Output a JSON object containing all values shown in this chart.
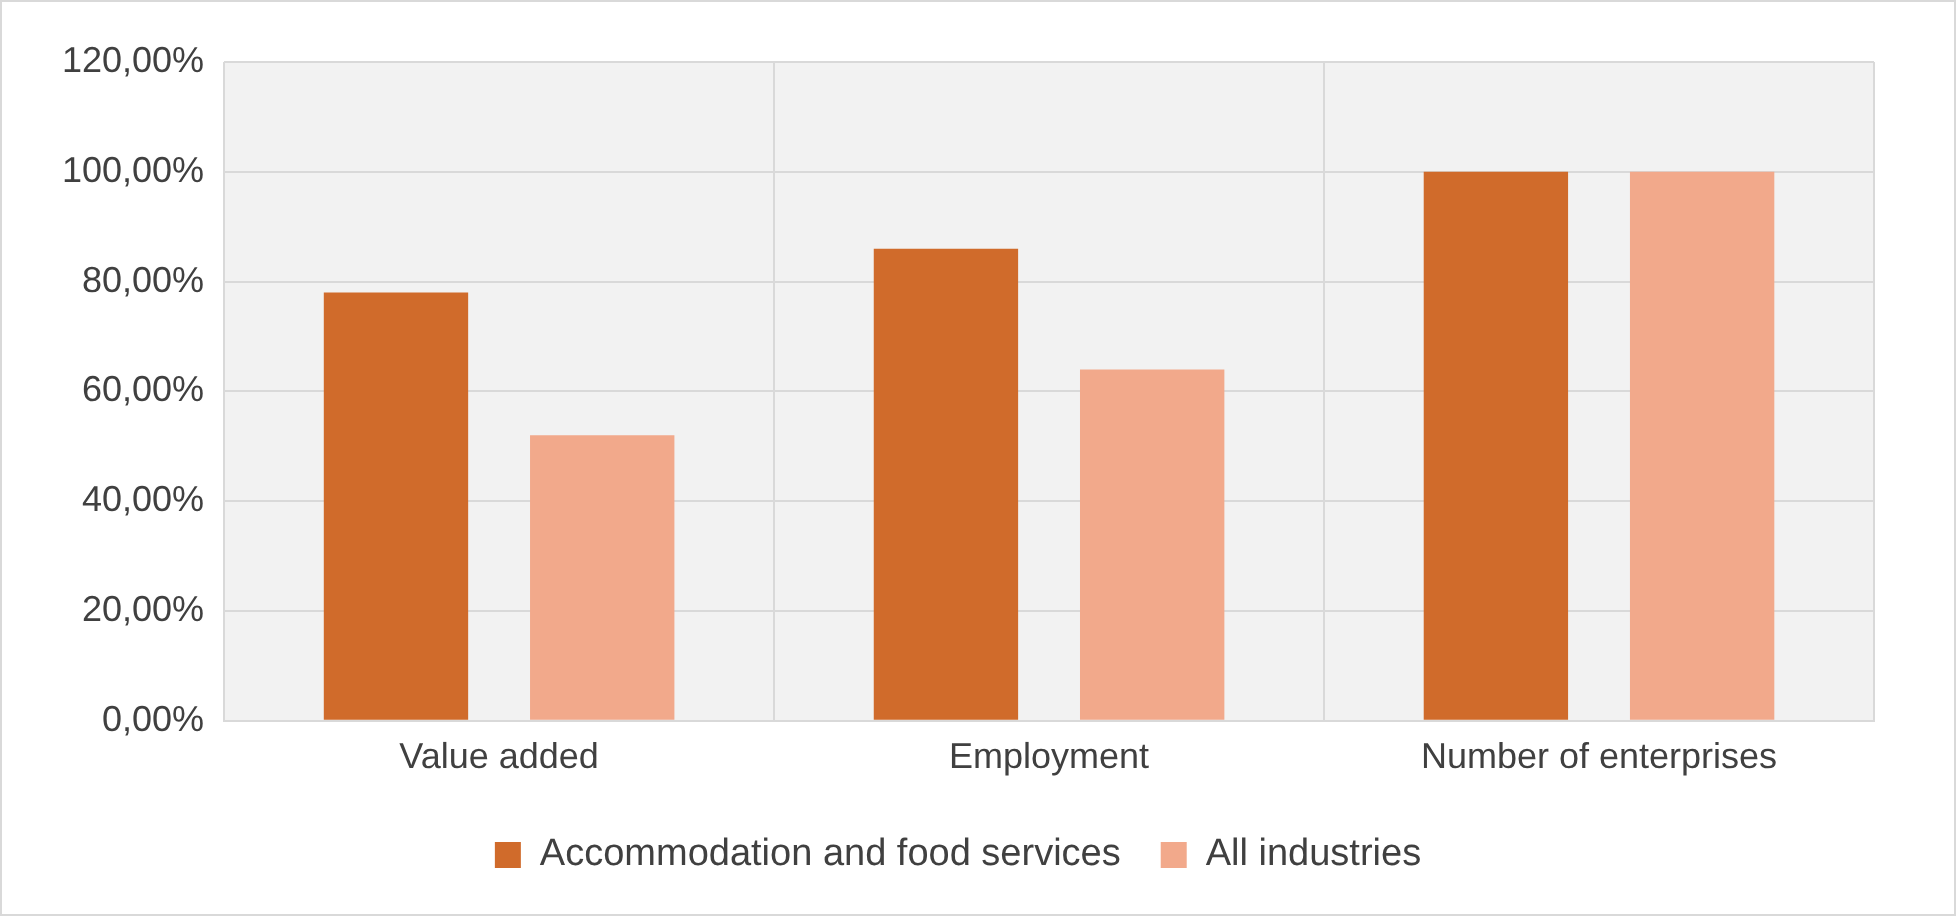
{
  "chart_data": {
    "type": "bar",
    "categories": [
      "Value added",
      "Employment",
      "Number of enterprises"
    ],
    "series": [
      {
        "name": "Accommodation and food services",
        "color": "#d06b2b",
        "values": [
          78,
          86,
          100
        ]
      },
      {
        "name": "All industries",
        "color": "#f2a98b",
        "values": [
          52,
          64,
          100
        ]
      }
    ],
    "ylim": [
      0,
      120
    ],
    "yticks": [
      {
        "value": 0,
        "label": "0,00%"
      },
      {
        "value": 20,
        "label": "20,00%"
      },
      {
        "value": 40,
        "label": "40,00%"
      },
      {
        "value": 60,
        "label": "60,00%"
      },
      {
        "value": 80,
        "label": "80,00%"
      },
      {
        "value": 100,
        "label": "100,00%"
      },
      {
        "value": 120,
        "label": "120,00%"
      }
    ],
    "grid": true,
    "legend": "bottom"
  }
}
